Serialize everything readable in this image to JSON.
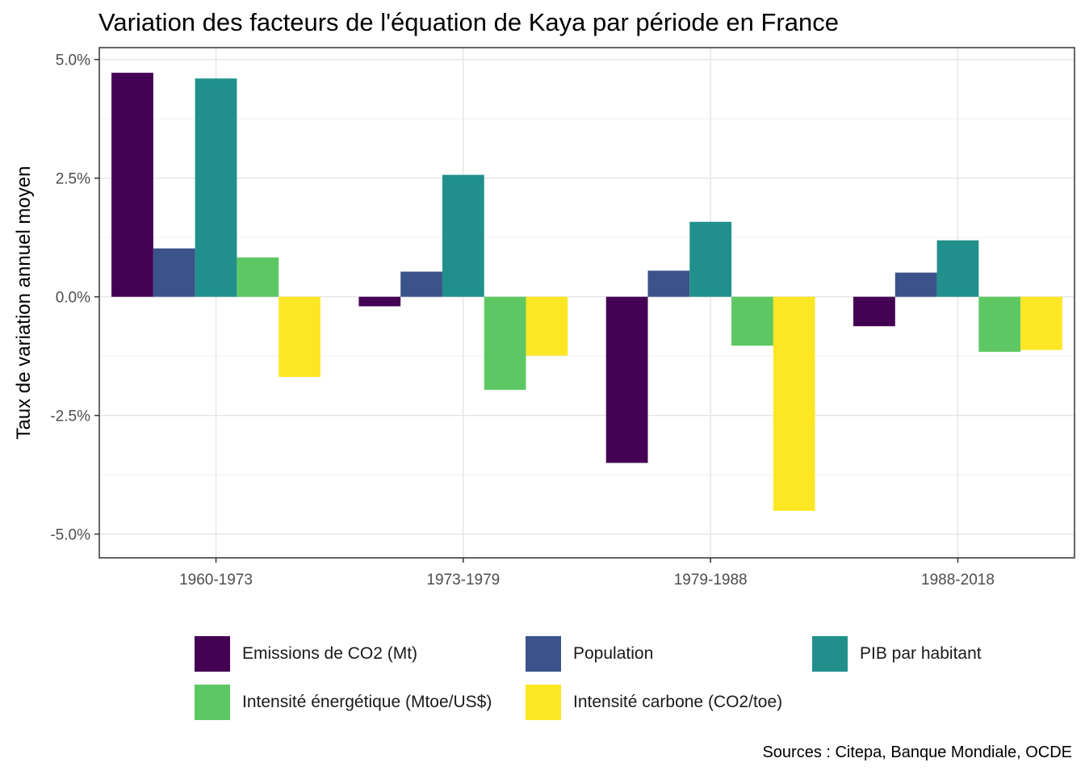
{
  "chart_data": {
    "type": "bar",
    "title": "Variation des facteurs de l'équation de Kaya par période en France",
    "xlabel": "",
    "ylabel": "Taux de variation annuel moyen",
    "ylim": [
      -5.5,
      5.25
    ],
    "yticks": [
      -5.0,
      -2.5,
      0.0,
      2.5,
      5.0
    ],
    "ytick_labels": [
      "-5.0%",
      "-2.5%",
      "0.0%",
      "2.5%",
      "5.0%"
    ],
    "grid": true,
    "legend_position": "bottom",
    "categories": [
      "1960-1973",
      "1973-1979",
      "1979-1988",
      "1988-2018"
    ],
    "series": [
      {
        "name": "Emissions de CO2 (Mt)",
        "color": "#440154",
        "values": [
          4.72,
          -0.2,
          -3.5,
          -0.62
        ]
      },
      {
        "name": "Population",
        "color": "#3B528B",
        "values": [
          1.02,
          0.53,
          0.55,
          0.51
        ]
      },
      {
        "name": "PIB par habitant",
        "color": "#21908C",
        "values": [
          4.6,
          2.57,
          1.58,
          1.19
        ]
      },
      {
        "name": "Intensité énergétique (Mtoe/US$)",
        "color": "#5DC863",
        "values": [
          0.83,
          -1.96,
          -1.03,
          -1.16
        ]
      },
      {
        "name": "Intensité carbone (CO2/toe)",
        "color": "#FDE725",
        "values": [
          -1.69,
          -1.24,
          -4.51,
          -1.12
        ]
      }
    ],
    "caption": "Sources : Citepa, Banque Mondiale, OCDE"
  }
}
